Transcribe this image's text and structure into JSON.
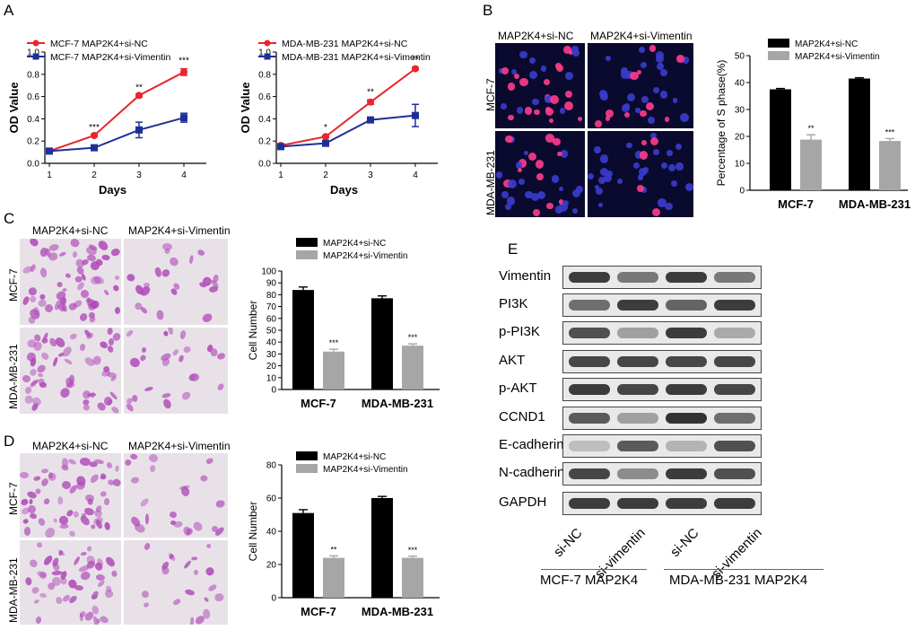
{
  "panels": {
    "A": "A",
    "B": "B",
    "C": "C",
    "D": "D",
    "E": "E"
  },
  "colors": {
    "red": "#e8262b",
    "blue": "#1f2f98",
    "black": "#000000",
    "gray": "#a6a6a6"
  },
  "micro": {
    "b_cols": [
      "MAP2K4+si-NC",
      "MAP2K4+si-Vimentin"
    ],
    "b_rows": [
      "MCF-7",
      "MDA-MB-231"
    ],
    "c_cols": [
      "MAP2K4+si-NC",
      "MAP2K4+si-Vimentin"
    ],
    "c_rows": [
      "MCF-7",
      "MDA-MB-231"
    ],
    "d_cols": [
      "MAP2K4+si-NC",
      "MAP2K4+si-Vimentin"
    ],
    "d_rows": [
      "MCF-7",
      "MDA-MB-231"
    ]
  },
  "western": {
    "proteins": [
      "Vimentin",
      "PI3K",
      "p-PI3K",
      "AKT",
      "p-AKT",
      "CCND1",
      "E-cadherin",
      "N-cadherin",
      "GAPDH"
    ],
    "lanes": [
      "si-NC",
      "si-vimentin",
      "si-NC",
      "si-vimentin"
    ],
    "groups": [
      "MCF-7 MAP2K4",
      "MDA-MB-231 MAP2K4"
    ],
    "intensity": [
      [
        0.85,
        0.55,
        0.85,
        0.55
      ],
      [
        0.6,
        0.85,
        0.65,
        0.85
      ],
      [
        0.75,
        0.35,
        0.85,
        0.3
      ],
      [
        0.8,
        0.8,
        0.8,
        0.8
      ],
      [
        0.85,
        0.8,
        0.85,
        0.8
      ],
      [
        0.7,
        0.35,
        0.9,
        0.6
      ],
      [
        0.2,
        0.7,
        0.25,
        0.75
      ],
      [
        0.8,
        0.45,
        0.85,
        0.75
      ],
      [
        0.85,
        0.85,
        0.85,
        0.85
      ]
    ]
  },
  "chart_data": [
    {
      "id": "A1",
      "type": "line",
      "title": "",
      "xlabel": "Days",
      "ylabel": "OD Value",
      "x": [
        1,
        2,
        3,
        4
      ],
      "xlim": [
        0.9,
        4.5
      ],
      "ylim": [
        0,
        1.0
      ],
      "xticks": [
        "1",
        "2",
        "3",
        "4"
      ],
      "yticks": [
        "0.0",
        "0.2",
        "0.4",
        "0.6",
        "0.8",
        "1.0"
      ],
      "series": [
        {
          "name": "MCF-7 MAP2K4+si-NC",
          "values": [
            0.11,
            0.25,
            0.61,
            0.82
          ],
          "err": [
            0.01,
            0.01,
            0.015,
            0.03
          ],
          "color": "#e8262b",
          "marker": "circle"
        },
        {
          "name": "MCF-7 MAP2K4+si-Vimentin",
          "values": [
            0.11,
            0.14,
            0.3,
            0.41
          ],
          "err": [
            0.01,
            0.01,
            0.07,
            0.04
          ],
          "color": "#1f2f98",
          "marker": "square"
        }
      ],
      "annotations": [
        {
          "x": 2,
          "y": 0.25,
          "text": "***"
        },
        {
          "x": 3,
          "y": 0.61,
          "text": "**"
        },
        {
          "x": 4,
          "y": 0.85,
          "text": "***"
        }
      ]
    },
    {
      "id": "A2",
      "type": "line",
      "title": "",
      "xlabel": "Days",
      "ylabel": "OD Value",
      "x": [
        1,
        2,
        3,
        4
      ],
      "xlim": [
        0.9,
        4.5
      ],
      "ylim": [
        0,
        1.0
      ],
      "xticks": [
        "1",
        "2",
        "3",
        "4"
      ],
      "yticks": [
        "0.0",
        "0.2",
        "0.4",
        "0.6",
        "0.8",
        "1.0"
      ],
      "series": [
        {
          "name": "MDA-MB-231 MAP2K4+si-NC",
          "values": [
            0.16,
            0.24,
            0.55,
            0.85
          ],
          "err": [
            0.01,
            0.01,
            0.02,
            0.01
          ],
          "color": "#e8262b",
          "marker": "circle"
        },
        {
          "name": "MDA-MB-231 MAP2K4+si-Vimentin",
          "values": [
            0.15,
            0.18,
            0.39,
            0.43
          ],
          "err": [
            0.01,
            0.02,
            0.02,
            0.1
          ],
          "color": "#1f2f98",
          "marker": "square"
        }
      ],
      "annotations": [
        {
          "x": 2,
          "y": 0.25,
          "text": "*"
        },
        {
          "x": 3,
          "y": 0.57,
          "text": "**"
        },
        {
          "x": 4,
          "y": 0.86,
          "text": "**"
        }
      ]
    },
    {
      "id": "B",
      "type": "bar",
      "title": "",
      "xlabel": "",
      "ylabel": "Percentage of  S phase(%)",
      "categories": [
        "MCF-7",
        "MDA-MB-231"
      ],
      "ylim": [
        0,
        50
      ],
      "yticks": [
        "0",
        "10",
        "20",
        "30",
        "40",
        "50"
      ],
      "series": [
        {
          "name": "MAP2K4+si-NC",
          "values": [
            37.5,
            41.5
          ],
          "err": [
            0.3,
            0.3
          ],
          "color": "#000000"
        },
        {
          "name": "MAP2K4+si-Vimentin",
          "values": [
            18.8,
            18.3
          ],
          "err": [
            1.8,
            0.9
          ],
          "color": "#a6a6a6"
        }
      ],
      "annotations": [
        "**",
        "***"
      ]
    },
    {
      "id": "C",
      "type": "bar",
      "title": "",
      "xlabel": "",
      "ylabel": "Cell Number",
      "categories": [
        "MCF-7",
        "MDA-MB-231"
      ],
      "ylim": [
        0,
        100
      ],
      "yticks": [
        "0",
        "10",
        "20",
        "30",
        "40",
        "50",
        "60",
        "70",
        "80",
        "90",
        "100"
      ],
      "series": [
        {
          "name": "MAP2K4+si-NC",
          "values": [
            84,
            77
          ],
          "err": [
            2.5,
            2
          ],
          "color": "#000000"
        },
        {
          "name": "MAP2K4+si-Vimentin",
          "values": [
            32,
            37
          ],
          "err": [
            2,
            1.5
          ],
          "color": "#a6a6a6"
        }
      ],
      "annotations": [
        "***",
        "***"
      ]
    },
    {
      "id": "D",
      "type": "bar",
      "title": "",
      "xlabel": "",
      "ylabel": "Cell Number",
      "categories": [
        "MCF-7",
        "MDA-MB-231"
      ],
      "ylim": [
        0,
        80
      ],
      "yticks": [
        "0",
        "20",
        "40",
        "60",
        "80"
      ],
      "series": [
        {
          "name": "MAP2K4+si-NC",
          "values": [
            51,
            60
          ],
          "err": [
            2,
            1
          ],
          "color": "#000000"
        },
        {
          "name": "MAP2K4+si-Vimentin",
          "values": [
            24,
            24
          ],
          "err": [
            1.2,
            1
          ],
          "color": "#a6a6a6"
        }
      ],
      "annotations": [
        "**",
        "***"
      ]
    }
  ]
}
